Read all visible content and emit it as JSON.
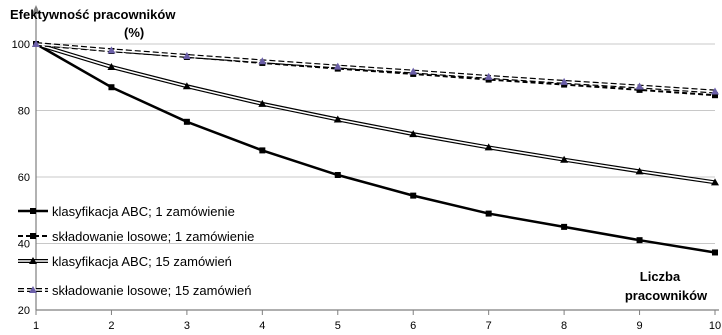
{
  "chart_data": {
    "type": "line",
    "ylabel": "Efektywność pracowników",
    "ylabel_unit": "(%)",
    "xlabel_line1": "Liczba",
    "xlabel_line2": "pracowników",
    "x": [
      1,
      2,
      3,
      4,
      5,
      6,
      7,
      8,
      9,
      10
    ],
    "xlim": [
      1,
      10
    ],
    "ylim": [
      20,
      100
    ],
    "yticks": [
      20,
      40,
      60,
      80,
      100
    ],
    "grid": true,
    "legend_position": "bottom-left",
    "series": [
      {
        "name": "klasyfikacja ABC; 1 zamówienie",
        "values": [
          100,
          87,
          76.6,
          68,
          60.6,
          54.4,
          49,
          45,
          41,
          37.3
        ],
        "style": "solid-thick",
        "marker": "square",
        "color": "#000000"
      },
      {
        "name": "składowanie losowe; 1 zamówienie",
        "values": [
          100,
          97.9,
          96.1,
          94.3,
          92.6,
          91.0,
          89.3,
          87.8,
          86.2,
          84.6
        ],
        "style": "dashed",
        "marker": "square",
        "color": "#000000"
      },
      {
        "name": "klasyfikacja ABC; 15 zamówień",
        "values": [
          100,
          93.1,
          87.3,
          82,
          77.3,
          72.9,
          68.9,
          65.2,
          61.7,
          58.4
        ],
        "style": "double",
        "marker": "triangle",
        "color": "#000000"
      },
      {
        "name": "składowanie losowe; 15 zamówień",
        "values": [
          100,
          98.1,
          96.4,
          94.8,
          93.2,
          91.7,
          90.1,
          88.6,
          87.2,
          85.7
        ],
        "style": "double-dashed",
        "marker": "triangle",
        "color": "#6b5fa8"
      }
    ]
  }
}
